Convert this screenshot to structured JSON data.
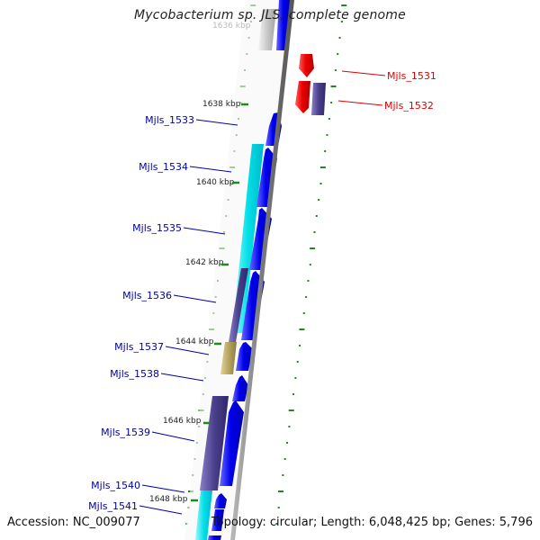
{
  "title": "Mycobacterium sp. JLS, complete genome",
  "accession_text": "Accession: NC_009077",
  "topology_text": "Topology: circular; Length: 6,048,425 bp; Genes: 5,796",
  "partial_top_label": "1636 kbp",
  "ticks": [
    {
      "label": "1638 kbp"
    },
    {
      "label": "1640 kbp"
    },
    {
      "label": "1642 kbp"
    },
    {
      "label": "1644 kbp"
    },
    {
      "label": "1646 kbp"
    },
    {
      "label": "1648 kbp"
    }
  ],
  "genes": [
    {
      "name": "Mjls_1531",
      "color": "#dd0000"
    },
    {
      "name": "Mjls_1532",
      "color": "#dd0000"
    },
    {
      "name": "Mjls_1533",
      "color": "#0000aa"
    },
    {
      "name": "Mjls_1534",
      "color": "#0000aa"
    },
    {
      "name": "Mjls_1535",
      "color": "#0000aa"
    },
    {
      "name": "Mjls_1536",
      "color": "#0000aa"
    },
    {
      "name": "Mjls_1537",
      "color": "#0000aa"
    },
    {
      "name": "Mjls_1538",
      "color": "#0000aa"
    },
    {
      "name": "Mjls_1539",
      "color": "#0000aa"
    },
    {
      "name": "Mjls_1540",
      "color": "#0000aa"
    },
    {
      "name": "Mjls_1541",
      "color": "#0000aa"
    }
  ],
  "colors": {
    "forward_cds": "#0000ee",
    "reverse_cds": "#ee0000",
    "cog_cyan": "#00e0e8",
    "cog_purple": "#4a3f8c",
    "cog_tan": "#b7a560",
    "cog_grey": "#c8c8c8",
    "backbone": "#888888",
    "tick_green": "#228822"
  }
}
